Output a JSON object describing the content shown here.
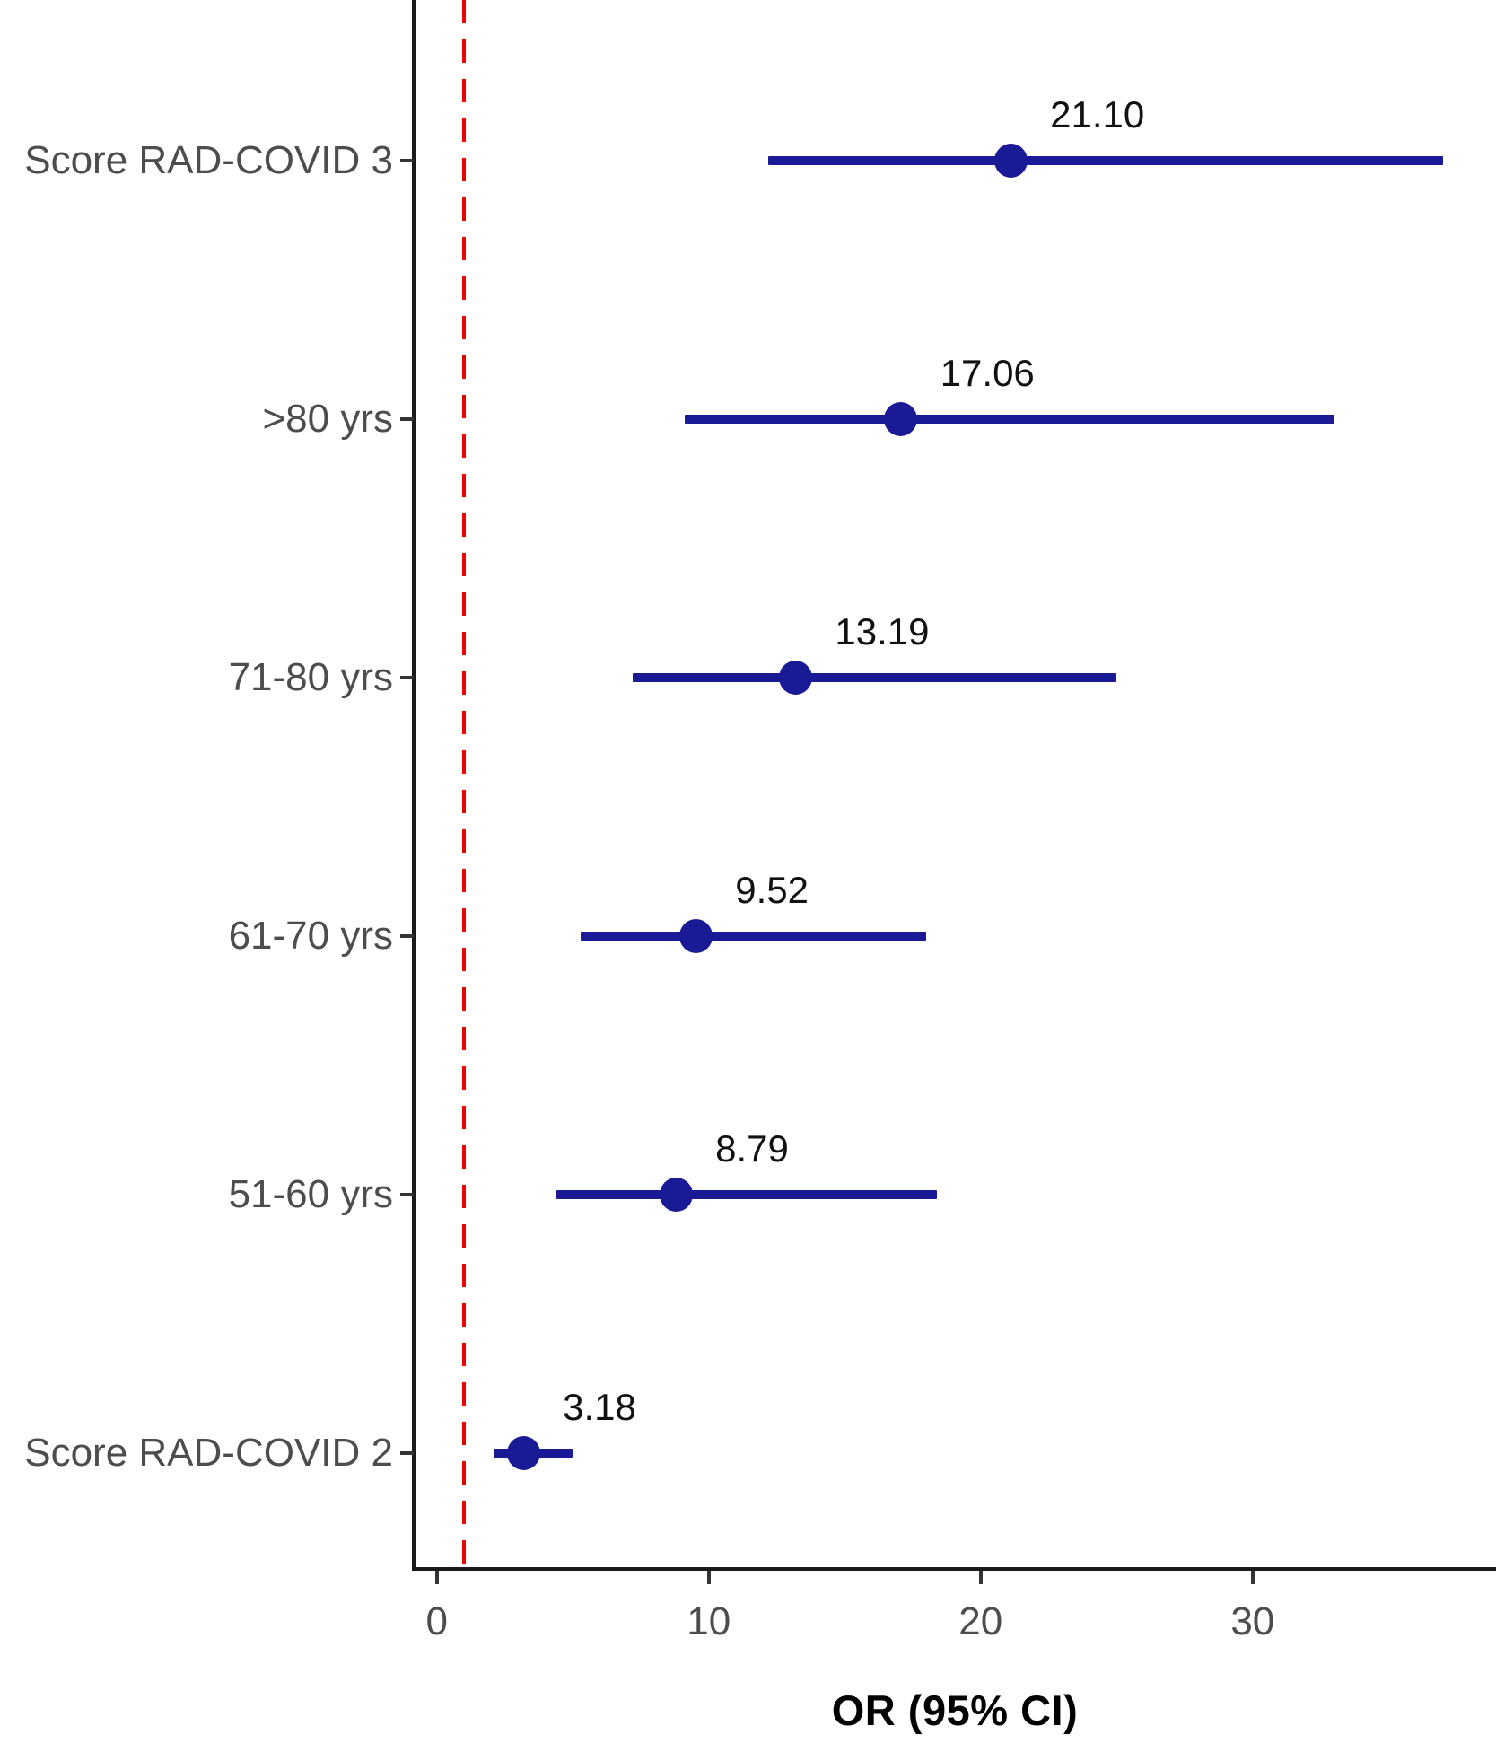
{
  "figure": {
    "kind": "forest plot",
    "background": "#ffffff"
  },
  "chart_data": {
    "type": "scatter",
    "subtype": "forest-plot-horizontal-ci",
    "title": "",
    "xlabel": "OR (95% CI)",
    "ylabel": "",
    "categories": [
      "Score RAD-COVID 3",
      ">80 yrs",
      "71-80 yrs",
      "61-70 yrs",
      "51-60 yrs",
      "Score RAD-COVID 2"
    ],
    "rows": [
      {
        "label": "Score RAD-COVID 3",
        "estimate": 21.1,
        "estimate_label": "21.10",
        "ci_low": 12.2,
        "ci_high": 37.0
      },
      {
        "label": ">80 yrs",
        "estimate": 17.06,
        "estimate_label": "17.06",
        "ci_low": 9.1,
        "ci_high": 33.0
      },
      {
        "label": "71-80 yrs",
        "estimate": 13.19,
        "estimate_label": "13.19",
        "ci_low": 7.2,
        "ci_high": 25.0
      },
      {
        "label": "61-70 yrs",
        "estimate": 9.52,
        "estimate_label": "9.52",
        "ci_low": 5.3,
        "ci_high": 18.0
      },
      {
        "label": "51-60 yrs",
        "estimate": 8.79,
        "estimate_label": "8.79",
        "ci_low": 4.4,
        "ci_high": 18.4
      },
      {
        "label": "Score RAD-COVID 2",
        "estimate": 3.18,
        "estimate_label": "3.18",
        "ci_low": 2.1,
        "ci_high": 5.0
      }
    ],
    "x_ticks": [
      0,
      10,
      20,
      30
    ],
    "x_tick_labels": [
      "0",
      "10",
      "20",
      "30"
    ],
    "xlim": [
      -0.85,
      38.95
    ],
    "reference_line": {
      "x": 1,
      "style": "dashed",
      "color": "#EE0000"
    },
    "grid": false,
    "legend": "none",
    "colors": {
      "point_and_ci": "#1A1A96",
      "axis": "#1A1A1A",
      "tick_label": "#4D4D4D",
      "value_label": "#111111",
      "reference": "#EE0000"
    }
  }
}
